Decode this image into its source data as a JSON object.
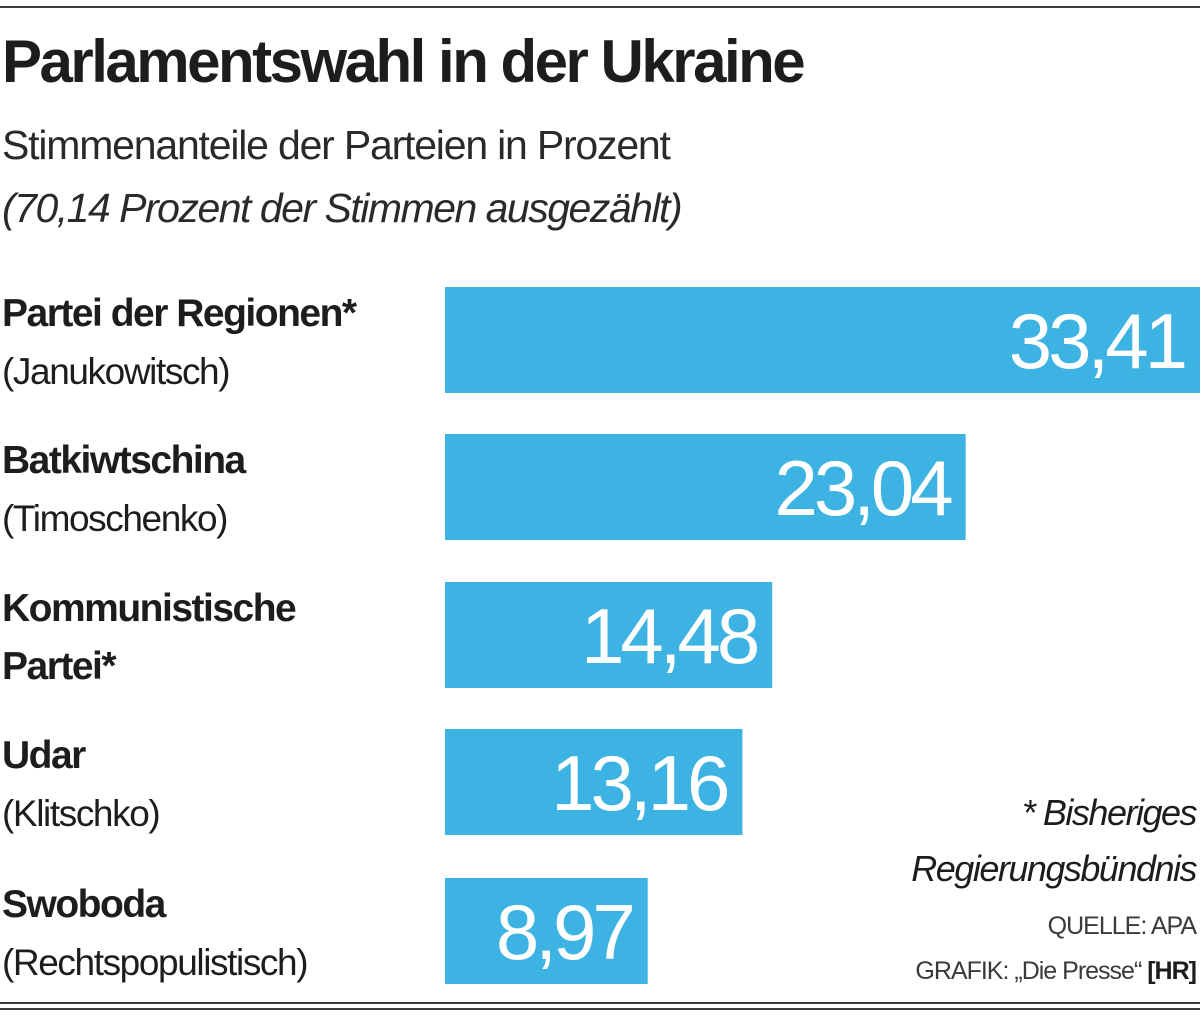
{
  "header": {
    "title": "Parlamentswahl in der Ukraine",
    "subtitle": "Stimmenanteile der Parteien in Prozent",
    "note": "(70,14 Prozent der Stimmen ausgezählt)"
  },
  "chart_data": {
    "type": "bar",
    "orientation": "horizontal",
    "title": "Parlamentswahl in der Ukraine",
    "subtitle": "Stimmenanteile der Parteien in Prozent",
    "categories": [
      {
        "name": "Partei der Regionen*",
        "sub": "(Janukowitsch)"
      },
      {
        "name": "Batkiwtschina",
        "sub": "(Timoschenko)"
      },
      {
        "name": "Kommunistische",
        "sub": "Partei*"
      },
      {
        "name": "Udar",
        "sub": "(Klitschko)"
      },
      {
        "name": "Swoboda",
        "sub": "(Rechtspopulistisch)"
      }
    ],
    "values": [
      33.41,
      23.04,
      14.48,
      13.16,
      8.97
    ],
    "value_labels": [
      "33,41",
      "23,04",
      "14,48",
      "13,16",
      "8,97"
    ],
    "bar_color": "#3db3e3",
    "grid": false,
    "legend": "none"
  },
  "footnote": {
    "line1": "* Bisheriges",
    "line2": "Regierungsbündnis"
  },
  "source": "QUELLE: APA",
  "credit": {
    "text": "GRAFIK: „Die Presse“",
    "initials": "[HR]"
  }
}
